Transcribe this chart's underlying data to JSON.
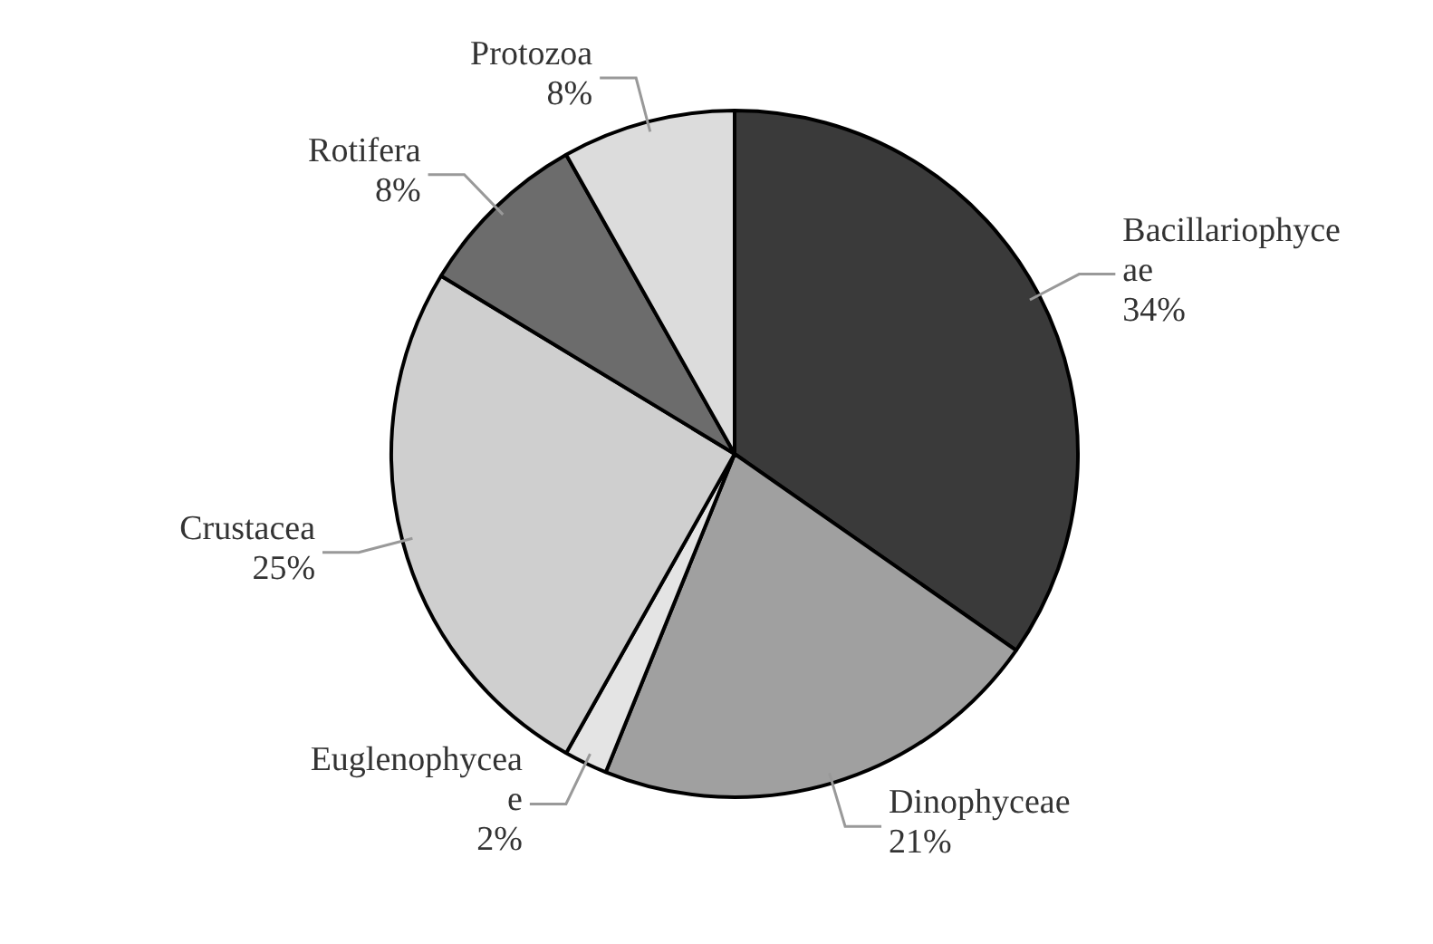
{
  "chart_data": {
    "type": "pie",
    "categories": [
      "Bacillariophyceae",
      "Dinophyceae",
      "Euglenophyceae",
      "Crustacea",
      "Rotifera",
      "Protozoa"
    ],
    "values": [
      34,
      21,
      2,
      25,
      8,
      8
    ],
    "value_labels": [
      "34%",
      "21%",
      "2%",
      "25%",
      "8%",
      "8%"
    ],
    "colors": [
      "#3a3a3a",
      "#a0a0a0",
      "#e4e4e4",
      "#cfcfcf",
      "#6c6c6c",
      "#dcdcdc"
    ]
  }
}
